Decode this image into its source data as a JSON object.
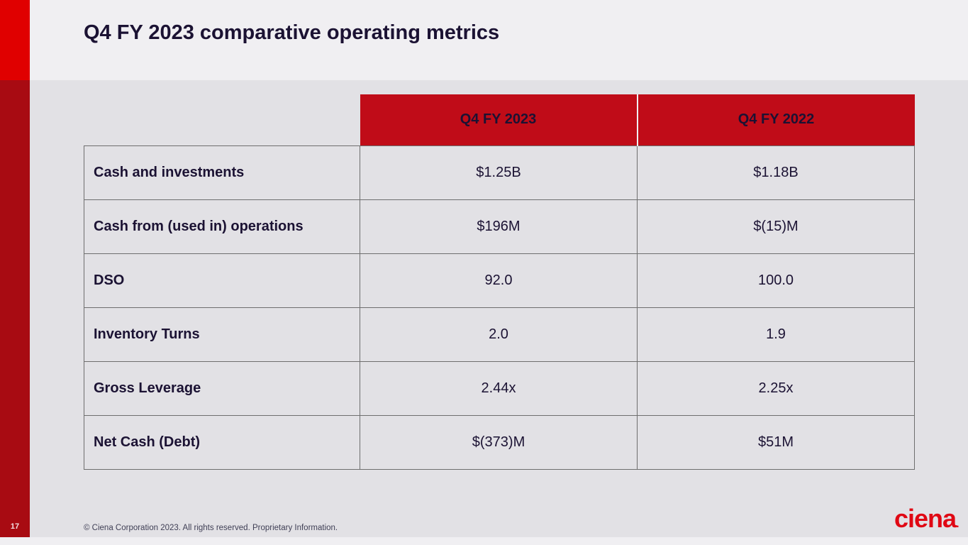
{
  "slide": {
    "title": "Q4 FY 2023 comparative operating metrics",
    "page_number": "17",
    "footer_note": "© Ciena Corporation 2023. All rights reserved. Proprietary Information.",
    "logo_text": "ciena",
    "logo_mark": "."
  },
  "table": {
    "column_headers": [
      "Q4 FY 2023",
      "Q4 FY 2022"
    ],
    "rows": [
      {
        "label": "Cash and investments",
        "values": [
          "$1.25B",
          "$1.18B"
        ]
      },
      {
        "label": "Cash from (used in) operations",
        "values": [
          "$196M",
          "$(15)M"
        ]
      },
      {
        "label": "DSO",
        "values": [
          "92.0",
          "100.0"
        ]
      },
      {
        "label": "Inventory Turns",
        "values": [
          "2.0",
          "1.9"
        ]
      },
      {
        "label": "Gross Leverage",
        "values": [
          "2.44x",
          "2.25x"
        ]
      },
      {
        "label": "Net Cash (Debt)",
        "values": [
          "$(373)M",
          "$51M"
        ]
      }
    ]
  },
  "colors": {
    "accent_bright_red": "#e00000",
    "accent_dark_red": "#a80b12",
    "table_header_red": "#c00c18",
    "title_text": "#1b1233",
    "body_background": "#e2e1e5",
    "band_background": "#f0eff2",
    "border_gray": "#6e6e6e"
  }
}
